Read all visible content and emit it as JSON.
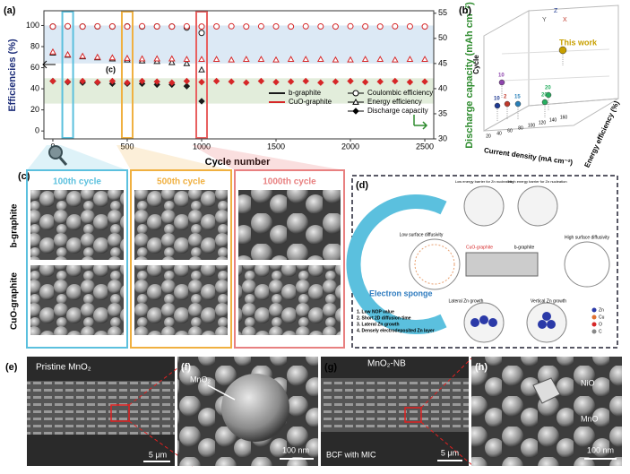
{
  "panel_labels": [
    "(a)",
    "(b)",
    "(c)",
    "(d)",
    "(e)",
    "(f)",
    "(g)",
    "(h)"
  ],
  "chart_data": {
    "type": "scatter",
    "x_label": "Cycle number",
    "y_label": "Efficiencies (%)",
    "y2_label": "Discharge capacity (mAh cm⁻²)",
    "annotation": "(c)",
    "x": [
      0,
      100,
      200,
      300,
      400,
      500,
      600,
      700,
      800,
      900,
      1000,
      1100,
      1200,
      1300,
      1400,
      1500,
      1600,
      1700,
      1800,
      1900,
      2000,
      2100,
      2200,
      2300,
      2400,
      2500
    ],
    "xlim": [
      -60,
      2560
    ],
    "xticks": [
      0,
      500,
      1000,
      1500,
      2000,
      2500
    ],
    "ylim": [
      -7.5,
      114
    ],
    "yticks": [
      0,
      20,
      40,
      60,
      80,
      100
    ],
    "y2lim": [
      30,
      55.5
    ],
    "y2ticks": [
      30,
      35,
      40,
      45,
      50,
      55
    ],
    "shaded_ranges": [
      {
        "from": 64,
        "to": 100,
        "color": "#d3e3f3"
      },
      {
        "from": 26,
        "to": 50,
        "color": "#dbe9d2"
      }
    ],
    "highlight_x": [
      {
        "value": 100,
        "color": "#5bc0de"
      },
      {
        "value": 500,
        "color": "#f0b040"
      },
      {
        "value": 1000,
        "color": "#e86060"
      }
    ],
    "materials": [
      {
        "name": "b-graphite",
        "color": "#1a1a1a"
      },
      {
        "name": "CuO-graphite",
        "color": "#d62728"
      }
    ],
    "metrics": [
      {
        "name": "Coulombic efficiency",
        "marker": "circle"
      },
      {
        "name": "Energy efficiency",
        "marker": "triangle"
      },
      {
        "name": "Discharge capacity",
        "marker": "diamond"
      }
    ],
    "series": [
      {
        "color": "#1a1a1a",
        "marker": "circle",
        "values": [
          99,
          99.2,
          99,
          99.1,
          99,
          99.2,
          99,
          99.1,
          99,
          98,
          93,
          null,
          null,
          null,
          null,
          null,
          null,
          null,
          null,
          null,
          null,
          null,
          null,
          null,
          null,
          null
        ]
      },
      {
        "color": "#d62728",
        "marker": "circle",
        "values": [
          99,
          99.3,
          99,
          99.2,
          99.1,
          99,
          99.3,
          99.1,
          99,
          99.2,
          99,
          99.1,
          99.3,
          99,
          99.2,
          99.1,
          99,
          99.2,
          99.1,
          99,
          99.3,
          99.1,
          99,
          99.2,
          99.1,
          99
        ]
      },
      {
        "color": "#1a1a1a",
        "marker": "triangle",
        "values": [
          74,
          72,
          70.5,
          69.5,
          68.5,
          67.5,
          66.5,
          66,
          65,
          64,
          58,
          null,
          null,
          null,
          null,
          null,
          null,
          null,
          null,
          null,
          null,
          null,
          null,
          null,
          null,
          null
        ]
      },
      {
        "color": "#d62728",
        "marker": "triangle",
        "values": [
          75,
          72.5,
          71,
          70,
          69.5,
          69,
          68.5,
          68.5,
          68.5,
          68,
          68,
          68,
          67.5,
          68,
          68,
          67.5,
          68,
          68,
          68,
          67.5,
          67.5,
          68,
          68,
          67.5,
          68,
          68
        ]
      },
      {
        "color": "#1a1a1a",
        "marker": "diamond",
        "axis": "y2",
        "values": [
          41.5,
          41.3,
          41.2,
          41.2,
          41,
          41,
          41,
          40.8,
          40.8,
          40.5,
          37.5,
          null,
          null,
          null,
          null,
          null,
          null,
          null,
          null,
          null,
          null,
          null,
          null,
          null,
          null,
          null
        ]
      },
      {
        "color": "#d62728",
        "marker": "diamond",
        "axis": "y2",
        "values": [
          41.5,
          41.4,
          41.5,
          41.3,
          41.5,
          41.2,
          41.5,
          41.4,
          41.2,
          41.5,
          41.3,
          41.5,
          41.4,
          41.2,
          41.5,
          41.3,
          41.4,
          41.5,
          41.2,
          41.4,
          41.5,
          41.3,
          41.4,
          41.5,
          41.3,
          41.4
        ]
      }
    ]
  },
  "panel_b": {
    "axis_letters": [
      "Z",
      "Y",
      "X"
    ],
    "z_title": "Cycle",
    "x_title": "Current density (mA cm⁻²)",
    "y_title": "Energy efficiency (%)",
    "x_ticks": [
      "20",
      "40",
      "60",
      "80",
      "100",
      "120",
      "140",
      "160"
    ],
    "points": [
      {
        "label": "This work",
        "color": "#c8a000"
      },
      {
        "label": "10",
        "color": "#8e44ad"
      },
      {
        "label": "10",
        "color": "#1f3a93"
      },
      {
        "label": "2",
        "color": "#c0392b"
      },
      {
        "label": "15",
        "color": "#2980b9"
      },
      {
        "label": "20",
        "color": "#27ae60"
      },
      {
        "label": "20",
        "color": "#27ae60"
      }
    ]
  },
  "panel_c": {
    "columns": [
      "100th cycle",
      "500th cycle",
      "1000th cycle"
    ],
    "rows": [
      "b-graphite",
      "CuO-graphite"
    ]
  },
  "panel_d": {
    "title": "Electron sponge",
    "points": [
      "1. Low NOP value",
      "2. Short 2D diffusion time",
      "3. Lateral Zn growth",
      "4. Densely electrodeposited Zn layer"
    ],
    "labels": [
      "CuO-graphite",
      "b-graphite",
      "Low surface diffusivity",
      "High surface diffusivity",
      "Lateral Zn growth",
      "Vertical Zn growth",
      "Low energy barrier for Zn nucleation",
      "High energy barrier for Zn nucleation"
    ],
    "legend": [
      "Zn",
      "Cu",
      "O",
      "C"
    ]
  },
  "panel_e": {
    "title": "Pristine MnO₂",
    "scale": "5 μm"
  },
  "panel_f": {
    "label": "MnO₂",
    "scale": "100 nm"
  },
  "panel_g": {
    "title": "MnO₂-NB",
    "note": "BCF with MIC",
    "scale": "5 μm"
  },
  "panel_h": {
    "labels": [
      "NiO",
      "MnO"
    ],
    "scale": "100 nm"
  }
}
